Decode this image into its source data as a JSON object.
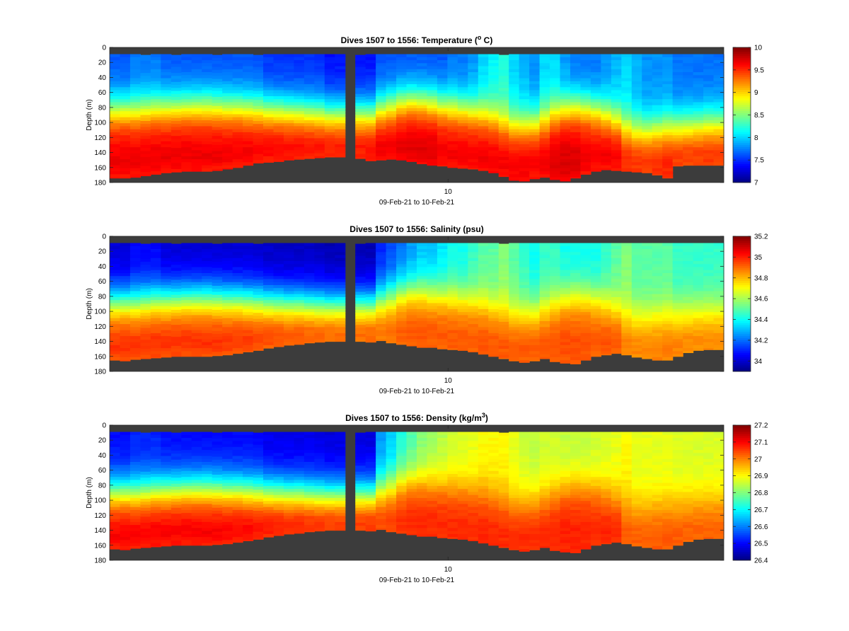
{
  "figure": {
    "colormap": "jet",
    "missing_color": "#3c3c3c",
    "x_ticks": [
      {
        "label": "10",
        "dive": 1534
      }
    ],
    "xlabel": "09-Feb-21 to 10-Feb-21",
    "ylabel": "Depth (m)",
    "y_ticks": [
      "0",
      "20",
      "40",
      "60",
      "80",
      "100",
      "120",
      "140",
      "160",
      "180"
    ]
  },
  "chart_data": [
    {
      "type": "heatmap",
      "title": "Dives 1507 to 1556: Temperature (° C)",
      "title_parts": {
        "pre": "Dives 1507 to 1556: Temperature (",
        "sup": "o",
        "post": " C)"
      },
      "xlabel": "09-Feb-21 to 10-Feb-21",
      "ylabel": "Depth (m)",
      "xlim": [
        1507,
        1556
      ],
      "ylim": [
        0,
        180
      ],
      "y_reversed": true,
      "clim": [
        7,
        10
      ],
      "colorbar_ticks": [
        "7",
        "7.5",
        "8",
        "8.5",
        "9",
        "9.5",
        "10"
      ],
      "missing_dive": 1526,
      "bottom_depth": [
        174,
        174,
        173,
        171,
        169,
        167,
        166,
        165,
        165,
        165,
        164,
        162,
        160,
        157,
        154,
        153,
        152,
        150,
        149,
        148,
        147,
        146,
        146,
        146,
        148,
        151,
        150,
        149,
        150,
        152,
        155,
        157,
        158,
        160,
        161,
        162,
        164,
        167,
        172,
        177,
        178,
        175,
        173,
        176,
        178,
        174,
        169,
        165,
        163,
        164,
        165,
        166,
        167,
        170,
        174,
        158,
        157,
        157,
        157,
        157
      ],
      "surface_depth": [
        9,
        9,
        9,
        10,
        9,
        9,
        10,
        9,
        9,
        9,
        10,
        9,
        9,
        9,
        10,
        9,
        9,
        9,
        9,
        9,
        9,
        9,
        9,
        9,
        10,
        9,
        9,
        9,
        9,
        9,
        9,
        9,
        9,
        9,
        9,
        9,
        9,
        9,
        10,
        9,
        9,
        9,
        9,
        9,
        9,
        9,
        9,
        9,
        9,
        9,
        9,
        9,
        9,
        9,
        9,
        9,
        9,
        9,
        9,
        9
      ],
      "thermocline_depth": [
        82,
        82,
        83,
        82,
        80,
        79,
        78,
        77,
        77,
        77,
        78,
        79,
        79,
        80,
        81,
        82,
        83,
        84,
        85,
        86,
        87,
        88,
        88,
        88,
        88,
        88,
        82,
        78,
        72,
        70,
        71,
        73,
        76,
        79,
        81,
        84,
        88,
        92,
        100,
        102,
        102,
        100,
        95,
        87,
        81,
        79,
        80,
        83,
        88,
        95,
        105,
        110,
        110,
        108,
        105,
        104,
        103,
        102,
        100,
        100
      ],
      "upper_value": [
        7.6,
        7.6,
        7.7,
        7.7,
        7.7,
        7.6,
        7.6,
        7.6,
        7.6,
        7.6,
        7.6,
        7.6,
        7.6,
        7.6,
        7.6,
        7.5,
        7.5,
        7.5,
        7.5,
        7.5,
        7.5,
        7.4,
        7.4,
        7.4,
        7.4,
        7.4,
        7.6,
        7.6,
        7.6,
        7.6,
        7.6,
        7.6,
        7.6,
        7.7,
        7.7,
        7.8,
        8.0,
        8.1,
        8.2,
        8.0,
        7.9,
        7.8,
        8.0,
        8.0,
        7.8,
        7.7,
        7.7,
        7.7,
        7.8,
        7.9,
        8.0,
        7.9,
        7.8,
        7.8,
        7.8,
        7.7,
        7.7,
        7.7,
        7.7,
        7.7
      ],
      "deep_value": [
        9.7,
        9.7,
        9.7,
        9.7,
        9.7,
        9.7,
        9.7,
        9.7,
        9.7,
        9.7,
        9.7,
        9.7,
        9.7,
        9.7,
        9.7,
        9.7,
        9.7,
        9.7,
        9.7,
        9.7,
        9.7,
        9.7,
        9.7,
        9.7,
        9.7,
        9.7,
        9.75,
        9.75,
        9.75,
        9.75,
        9.75,
        9.75,
        9.7,
        9.7,
        9.7,
        9.7,
        9.7,
        9.7,
        9.7,
        9.7,
        9.7,
        9.7,
        9.7,
        9.75,
        9.75,
        9.75,
        9.7,
        9.7,
        9.7,
        9.7,
        9.6,
        9.6,
        9.6,
        9.6,
        9.6,
        9.6,
        9.6,
        9.6,
        9.6,
        9.6
      ]
    },
    {
      "type": "heatmap",
      "title": "Dives 1507 to 1556: Salinity (psu)",
      "title_parts": {
        "pre": "Dives 1507 to 1556: Salinity (psu)",
        "sup": "",
        "post": ""
      },
      "xlabel": "09-Feb-21 to 10-Feb-21",
      "ylabel": "Depth (m)",
      "xlim": [
        1507,
        1556
      ],
      "ylim": [
        0,
        180
      ],
      "y_reversed": true,
      "clim": [
        33.9,
        35.2
      ],
      "colorbar_ticks": [
        "34",
        "34.2",
        "34.4",
        "34.6",
        "34.8",
        "35",
        "35.2"
      ],
      "missing_dive": 1526,
      "bottom_depth": [
        165,
        166,
        164,
        163,
        162,
        161,
        160,
        160,
        160,
        160,
        159,
        158,
        156,
        154,
        152,
        149,
        147,
        145,
        144,
        142,
        141,
        140,
        140,
        140,
        140,
        141,
        139,
        142,
        144,
        146,
        148,
        148,
        150,
        151,
        152,
        154,
        157,
        160,
        163,
        166,
        168,
        166,
        163,
        167,
        169,
        170,
        165,
        160,
        158,
        156,
        158,
        161,
        163,
        165,
        165,
        160,
        155,
        152,
        151,
        151
      ],
      "surface_depth": [
        9,
        9,
        9,
        10,
        9,
        9,
        10,
        9,
        9,
        9,
        10,
        9,
        9,
        9,
        10,
        9,
        9,
        9,
        9,
        9,
        9,
        9,
        9,
        9,
        10,
        9,
        9,
        9,
        9,
        9,
        9,
        9,
        9,
        9,
        9,
        9,
        9,
        9,
        10,
        9,
        9,
        9,
        9,
        9,
        9,
        9,
        9,
        9,
        9,
        9,
        9,
        9,
        9,
        9,
        9,
        9,
        9,
        9,
        9,
        9
      ],
      "thermocline_depth": [
        86,
        86,
        87,
        86,
        84,
        83,
        82,
        81,
        81,
        81,
        82,
        83,
        83,
        84,
        85,
        86,
        87,
        88,
        88,
        89,
        90,
        90,
        90,
        90,
        90,
        90,
        84,
        80,
        74,
        72,
        73,
        75,
        78,
        81,
        83,
        86,
        90,
        94,
        100,
        102,
        102,
        100,
        95,
        88,
        82,
        80,
        81,
        84,
        89,
        96,
        104,
        108,
        108,
        106,
        103,
        102,
        101,
        100,
        99,
        99
      ],
      "upper_value": [
        34.0,
        34.0,
        34.05,
        34.05,
        34.05,
        34.0,
        34.0,
        34.0,
        34.0,
        34.0,
        34.0,
        34.0,
        34.0,
        34.0,
        34.0,
        33.98,
        33.98,
        33.98,
        33.98,
        33.98,
        33.98,
        33.96,
        33.96,
        33.96,
        33.96,
        33.96,
        34.1,
        34.15,
        34.2,
        34.25,
        34.3,
        34.3,
        34.35,
        34.4,
        34.4,
        34.45,
        34.5,
        34.5,
        34.55,
        34.5,
        34.45,
        34.4,
        34.45,
        34.45,
        34.4,
        34.4,
        34.4,
        34.4,
        34.45,
        34.5,
        34.55,
        34.5,
        34.5,
        34.5,
        34.5,
        34.45,
        34.45,
        34.45,
        34.45,
        34.45
      ],
      "deep_value": [
        35.0,
        35.0,
        35.0,
        35.0,
        35.0,
        35.0,
        35.0,
        35.0,
        35.0,
        35.0,
        35.0,
        35.0,
        35.0,
        35.0,
        35.0,
        35.0,
        35.0,
        35.0,
        35.0,
        35.0,
        35.0,
        35.0,
        35.0,
        35.0,
        35.0,
        35.0,
        34.95,
        34.95,
        34.95,
        34.95,
        34.95,
        34.95,
        34.95,
        34.95,
        34.95,
        34.95,
        34.95,
        34.95,
        34.95,
        34.95,
        34.95,
        34.95,
        34.95,
        34.95,
        34.95,
        34.95,
        34.95,
        34.95,
        34.95,
        34.95,
        34.9,
        34.9,
        34.9,
        34.9,
        34.9,
        34.9,
        34.9,
        34.9,
        34.9,
        34.9
      ]
    },
    {
      "type": "heatmap",
      "title": "Dives 1507 to 1556: Density (kg/m³)",
      "title_parts": {
        "pre": "Dives 1507 to 1556: Density (kg/m",
        "sup": "3",
        "post": ")"
      },
      "xlabel": "09-Feb-21 to 10-Feb-21",
      "ylabel": "Depth (m)",
      "xlim": [
        1507,
        1556
      ],
      "ylim": [
        0,
        180
      ],
      "y_reversed": true,
      "clim": [
        26.4,
        27.2
      ],
      "colorbar_ticks": [
        "26.4",
        "26.5",
        "26.6",
        "26.7",
        "26.8",
        "26.9",
        "27",
        "27.1",
        "27.2"
      ],
      "missing_dive": 1526,
      "bottom_depth": [
        165,
        166,
        164,
        163,
        162,
        161,
        160,
        160,
        160,
        160,
        159,
        158,
        156,
        154,
        152,
        149,
        147,
        145,
        144,
        142,
        141,
        140,
        140,
        140,
        140,
        141,
        139,
        142,
        144,
        146,
        148,
        148,
        150,
        151,
        152,
        154,
        157,
        160,
        163,
        166,
        168,
        166,
        163,
        167,
        169,
        170,
        165,
        160,
        158,
        156,
        158,
        161,
        163,
        165,
        165,
        160,
        155,
        152,
        151,
        151
      ],
      "surface_depth": [
        9,
        9,
        9,
        10,
        9,
        9,
        10,
        9,
        9,
        9,
        10,
        9,
        9,
        9,
        10,
        9,
        9,
        9,
        9,
        9,
        9,
        9,
        9,
        9,
        10,
        9,
        9,
        9,
        9,
        9,
        9,
        9,
        9,
        9,
        9,
        9,
        9,
        9,
        10,
        9,
        9,
        9,
        9,
        9,
        9,
        9,
        9,
        9,
        9,
        9,
        9,
        9,
        9,
        9,
        9,
        9,
        9,
        9,
        9,
        9
      ],
      "thermocline_depth": [
        88,
        88,
        89,
        88,
        86,
        85,
        84,
        83,
        83,
        83,
        84,
        85,
        85,
        86,
        87,
        88,
        89,
        90,
        90,
        91,
        92,
        92,
        92,
        92,
        92,
        92,
        86,
        82,
        76,
        74,
        75,
        77,
        80,
        83,
        85,
        88,
        92,
        96,
        102,
        104,
        104,
        102,
        97,
        90,
        84,
        82,
        83,
        86,
        91,
        98,
        106,
        110,
        110,
        108,
        105,
        104,
        103,
        102,
        101,
        101
      ],
      "upper_value": [
        26.5,
        26.5,
        26.52,
        26.52,
        26.52,
        26.5,
        26.5,
        26.5,
        26.5,
        26.5,
        26.5,
        26.5,
        26.5,
        26.5,
        26.5,
        26.48,
        26.48,
        26.48,
        26.48,
        26.48,
        26.48,
        26.47,
        26.47,
        26.47,
        26.47,
        26.47,
        26.62,
        26.66,
        26.72,
        26.76,
        26.8,
        26.82,
        26.84,
        26.86,
        26.87,
        26.88,
        26.9,
        26.9,
        26.9,
        26.88,
        26.86,
        26.85,
        26.86,
        26.86,
        26.85,
        26.85,
        26.85,
        26.86,
        26.87,
        26.88,
        26.9,
        26.88,
        26.88,
        26.88,
        26.88,
        26.87,
        26.87,
        26.87,
        26.87,
        26.87
      ],
      "deep_value": [
        27.12,
        27.12,
        27.12,
        27.12,
        27.12,
        27.12,
        27.12,
        27.12,
        27.12,
        27.12,
        27.12,
        27.12,
        27.12,
        27.12,
        27.12,
        27.12,
        27.12,
        27.12,
        27.12,
        27.12,
        27.12,
        27.12,
        27.12,
        27.12,
        27.12,
        27.12,
        27.08,
        27.08,
        27.08,
        27.08,
        27.08,
        27.08,
        27.08,
        27.08,
        27.08,
        27.08,
        27.08,
        27.08,
        27.08,
        27.08,
        27.08,
        27.08,
        27.08,
        27.08,
        27.08,
        27.08,
        27.08,
        27.08,
        27.08,
        27.08,
        27.04,
        27.04,
        27.04,
        27.04,
        27.04,
        27.04,
        27.04,
        27.04,
        27.04,
        27.04
      ]
    }
  ]
}
